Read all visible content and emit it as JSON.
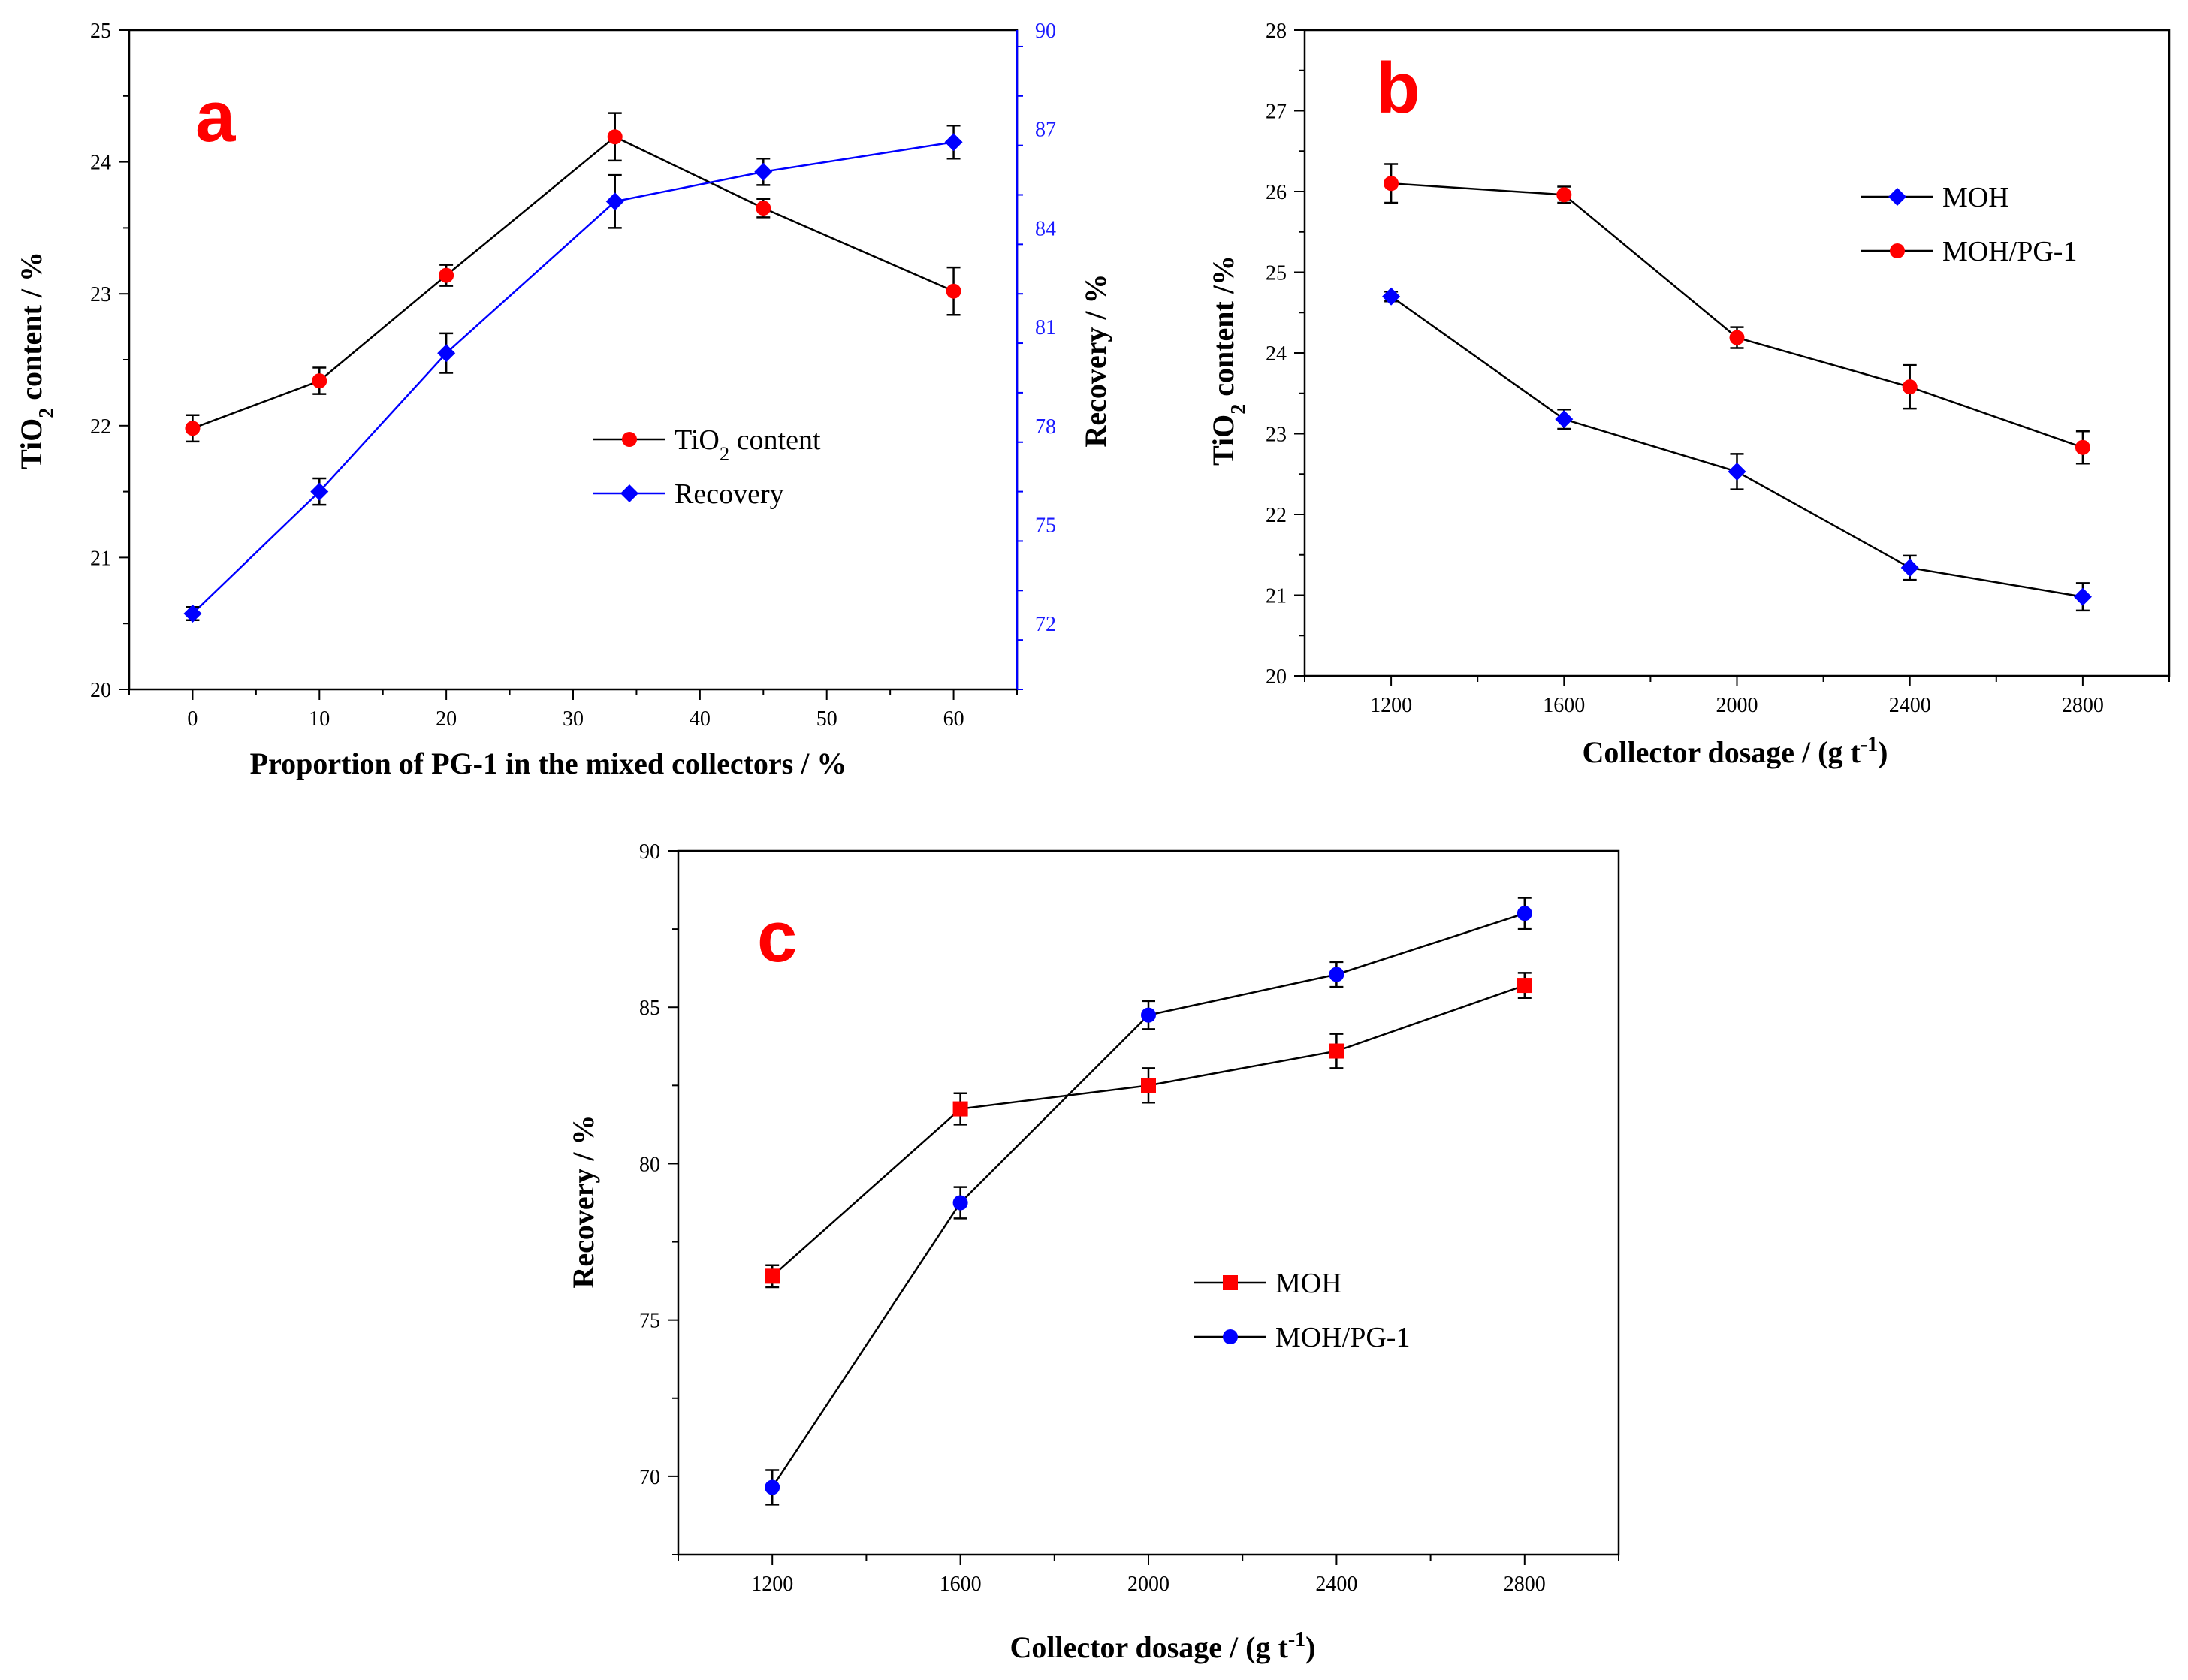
{
  "colors": {
    "red": "#ff0000",
    "blue": "#0000ff",
    "black": "#000000",
    "right_axis_blue": "#1a1aff"
  },
  "chart_data": [
    {
      "panel": "a",
      "type": "line",
      "panel_label": "a",
      "xlabel": "Proportion of PG-1 in the mixed collectors / %",
      "ylabel": {
        "pre": "TiO",
        "sub": "2",
        "post": " content / %"
      },
      "y2label": "Recovery / %",
      "xlim": [
        -5,
        65
      ],
      "ylim": [
        20,
        25
      ],
      "y2lim": [
        70,
        90
      ],
      "xticks": [
        0,
        10,
        20,
        30,
        40,
        50,
        60
      ],
      "yticks": [
        20,
        21,
        22,
        23,
        24,
        25
      ],
      "y2ticks": [
        72,
        75,
        78,
        81,
        84,
        87,
        90
      ],
      "legend_position": "center-right",
      "series": [
        {
          "name": "TiO2 content",
          "legend": {
            "pre": "TiO",
            "sub": "2",
            "post": " content"
          },
          "axis": "left",
          "marker": "circle",
          "color": "#ff0000",
          "line_color": "#000000",
          "x": [
            0,
            10,
            20,
            33.3,
            45,
            60
          ],
          "values": [
            21.98,
            22.34,
            23.14,
            24.19,
            23.65,
            23.02
          ],
          "errors": [
            0.1,
            0.1,
            0.08,
            0.18,
            0.07,
            0.18
          ]
        },
        {
          "name": "Recovery",
          "legend": {
            "pre": "Recovery",
            "sub": "",
            "post": ""
          },
          "axis": "right",
          "marker": "diamond",
          "color": "#0000ff",
          "line_color": "#0000ff",
          "x": [
            0,
            10,
            20,
            33.3,
            45,
            60
          ],
          "values": [
            72.3,
            76.0,
            80.2,
            84.8,
            85.7,
            86.6
          ],
          "errors": [
            0.2,
            0.4,
            0.6,
            0.8,
            0.4,
            0.5
          ]
        }
      ]
    },
    {
      "panel": "b",
      "type": "line",
      "panel_label": "b",
      "xlabel": {
        "pre": "Collector dosage / (g t",
        "sup": "-1",
        "post": ")"
      },
      "ylabel": {
        "pre": "TiO",
        "sub": "2",
        "post": " content /%"
      },
      "xlim": [
        1000,
        3000
      ],
      "ylim": [
        20,
        28
      ],
      "xticks": [
        1200,
        1600,
        2000,
        2400,
        2800
      ],
      "yticks": [
        20,
        21,
        22,
        23,
        24,
        25,
        26,
        27,
        28
      ],
      "legend_position": "top-right",
      "series": [
        {
          "name": "MOH",
          "marker": "diamond",
          "color": "#0000ff",
          "line_color": "#000000",
          "x": [
            1200,
            1600,
            2000,
            2400,
            2800
          ],
          "values": [
            24.7,
            23.18,
            22.53,
            21.34,
            20.98
          ],
          "errors": [
            0.06,
            0.12,
            0.22,
            0.15,
            0.17
          ]
        },
        {
          "name": "MOH/PG-1",
          "marker": "circle",
          "color": "#ff0000",
          "line_color": "#000000",
          "x": [
            1200,
            1600,
            2000,
            2400,
            2800
          ],
          "values": [
            26.1,
            25.96,
            24.19,
            23.58,
            22.83
          ],
          "errors": [
            0.24,
            0.1,
            0.13,
            0.27,
            0.2
          ]
        }
      ]
    },
    {
      "panel": "c",
      "type": "line",
      "panel_label": "c",
      "xlabel": {
        "pre": "Collector dosage / (g t",
        "sup": "-1",
        "post": ")"
      },
      "ylabel": "Recovery / %",
      "xlim": [
        1000,
        3000
      ],
      "ylim": [
        67.5,
        90
      ],
      "xticks": [
        1200,
        1600,
        2000,
        2400,
        2800
      ],
      "yticks": [
        70,
        75,
        80,
        85,
        90
      ],
      "legend_position": "lower-right",
      "series": [
        {
          "name": "MOH",
          "marker": "square",
          "color": "#ff0000",
          "line_color": "#000000",
          "x": [
            1200,
            1600,
            2000,
            2400,
            2800
          ],
          "values": [
            76.4,
            81.75,
            82.5,
            83.6,
            85.7
          ],
          "errors": [
            0.35,
            0.5,
            0.55,
            0.55,
            0.4
          ]
        },
        {
          "name": "MOH/PG-1",
          "marker": "circle",
          "color": "#0000ff",
          "line_color": "#000000",
          "x": [
            1200,
            1600,
            2000,
            2400,
            2800
          ],
          "values": [
            69.65,
            78.75,
            84.75,
            86.05,
            88.0
          ],
          "errors": [
            0.55,
            0.5,
            0.45,
            0.4,
            0.5
          ]
        }
      ]
    }
  ]
}
